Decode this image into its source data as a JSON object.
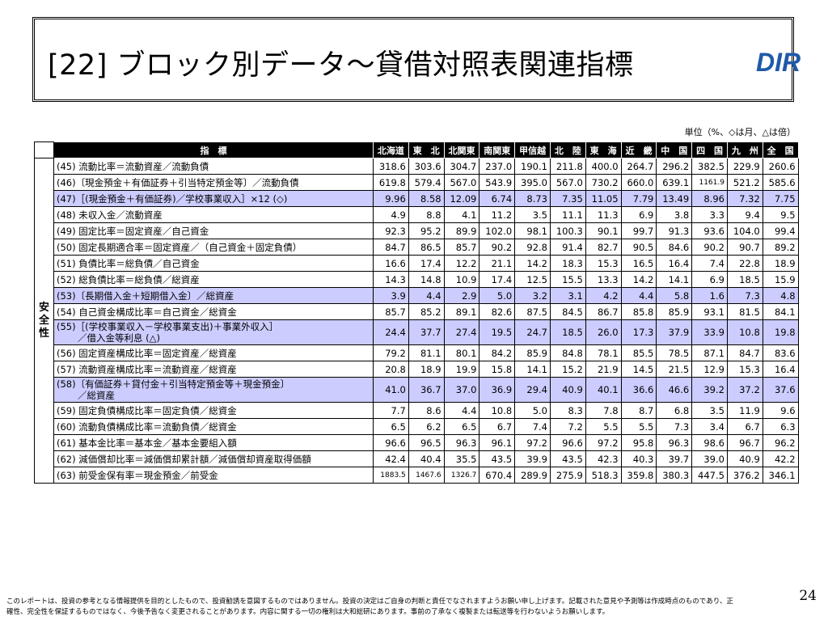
{
  "slide": {
    "title": "[22] ブロック別データ～貸借対照表関連指標",
    "logo_text": "DIR",
    "unit_note": "単位（%、◇は月、△は倍）",
    "page_number": "24",
    "footer": "このレポートは、投資の参考となる情報提供を目的としたもので、投資勧誘を意図するものではありません。投資の決定はご自身の判断と責任でなされますようお願い申し上げます。記載された意見や予測等は作成時点のものであり、正確性、完全性を保証するものではなく、今後予告なく変更されることがあります。内容に関する一切の権利は大和総研にあります。事前の了承なく複製または転送等を行わないようお願いします。"
  },
  "table": {
    "category": "安全性",
    "index_header": "指　標",
    "columns": [
      "北海道",
      "東　北",
      "北関東",
      "南関東",
      "甲信越",
      "北　陸",
      "東　海",
      "近　畿",
      "中　国",
      "四　国",
      "九　州",
      "全　国"
    ],
    "rows": [
      {
        "label": "(45) 流動比率＝流動資産／流動負債",
        "values": [
          "318.6",
          "303.6",
          "304.7",
          "237.0",
          "190.1",
          "211.8",
          "400.0",
          "264.7",
          "296.2",
          "382.5",
          "229.9",
          "260.6"
        ]
      },
      {
        "label": "(46)〔現金預金＋有価証券＋引当特定預金等〕／流動負債",
        "values": [
          "619.8",
          "579.4",
          "567.0",
          "543.9",
          "395.0",
          "567.0",
          "730.2",
          "660.0",
          "639.1",
          "1161.9",
          "521.2",
          "585.6"
        ]
      },
      {
        "label": "(47)［(現金預金＋有価証券)／学校事業収入］×12 (◇)",
        "values": [
          "9.96",
          "8.58",
          "12.09",
          "6.74",
          "8.73",
          "7.35",
          "11.05",
          "7.79",
          "13.49",
          "8.96",
          "7.32",
          "7.75"
        ]
      },
      {
        "label": "(48) 未収入金／流動資産",
        "values": [
          "4.9",
          "8.8",
          "4.1",
          "11.2",
          "3.5",
          "11.1",
          "11.3",
          "6.9",
          "3.8",
          "3.3",
          "9.4",
          "9.5"
        ]
      },
      {
        "label": "(49) 固定比率＝固定資産／自己資金",
        "values": [
          "92.3",
          "95.2",
          "89.9",
          "102.0",
          "98.1",
          "100.3",
          "90.1",
          "99.7",
          "91.3",
          "93.6",
          "104.0",
          "99.4"
        ]
      },
      {
        "label": "(50) 固定長期適合率＝固定資産／（自己資金＋固定負債）",
        "values": [
          "84.7",
          "86.5",
          "85.7",
          "90.2",
          "92.8",
          "91.4",
          "82.7",
          "90.5",
          "84.6",
          "90.2",
          "90.7",
          "89.2"
        ]
      },
      {
        "label": "(51) 負債比率＝総負債／自己資金",
        "values": [
          "16.6",
          "17.4",
          "12.2",
          "21.1",
          "14.2",
          "18.3",
          "15.3",
          "16.5",
          "16.4",
          "7.4",
          "22.8",
          "18.9"
        ]
      },
      {
        "label": "(52) 総負債比率＝総負債／総資産",
        "values": [
          "14.3",
          "14.8",
          "10.9",
          "17.4",
          "12.5",
          "15.5",
          "13.3",
          "14.2",
          "14.1",
          "6.9",
          "18.5",
          "15.9"
        ]
      },
      {
        "label": "(53)〔長期借入金＋短期借入金〕／総資産",
        "values": [
          "3.9",
          "4.4",
          "2.9",
          "5.0",
          "3.2",
          "3.1",
          "4.2",
          "4.4",
          "5.8",
          "1.6",
          "7.3",
          "4.8"
        ]
      },
      {
        "label": "(54) 自己資金構成比率＝自己資金／総資金",
        "values": [
          "85.7",
          "85.2",
          "89.1",
          "82.6",
          "87.5",
          "84.5",
          "86.7",
          "85.8",
          "85.9",
          "93.1",
          "81.5",
          "84.1"
        ]
      },
      {
        "label": "(55)［(学校事業収入－学校事業支出)＋事業外収入］",
        "label2": "／借入金等利息 (△)",
        "values": [
          "24.4",
          "37.7",
          "27.4",
          "19.5",
          "24.7",
          "18.5",
          "26.0",
          "17.3",
          "37.9",
          "33.9",
          "10.8",
          "19.8"
        ]
      },
      {
        "label": "(56) 固定資産構成比率＝固定資産／総資産",
        "values": [
          "79.2",
          "81.1",
          "80.1",
          "84.2",
          "85.9",
          "84.8",
          "78.1",
          "85.5",
          "78.5",
          "87.1",
          "84.7",
          "83.6"
        ]
      },
      {
        "label": "(57) 流動資産構成比率＝流動資産／総資産",
        "values": [
          "20.8",
          "18.9",
          "19.9",
          "15.8",
          "14.1",
          "15.2",
          "21.9",
          "14.5",
          "21.5",
          "12.9",
          "15.3",
          "16.4"
        ]
      },
      {
        "label": "(58)〔有価証券＋貸付金＋引当特定預金等＋現金預金〕",
        "label2": "／総資産",
        "values": [
          "41.0",
          "36.7",
          "37.0",
          "36.9",
          "29.4",
          "40.9",
          "40.1",
          "36.6",
          "46.6",
          "39.2",
          "37.2",
          "37.6"
        ]
      },
      {
        "label": "(59) 固定負債構成比率＝固定負債／総資金",
        "values": [
          "7.7",
          "8.6",
          "4.4",
          "10.8",
          "5.0",
          "8.3",
          "7.8",
          "8.7",
          "6.8",
          "3.5",
          "11.9",
          "9.6"
        ]
      },
      {
        "label": "(60) 流動負債構成比率＝流動負債／総資金",
        "values": [
          "6.5",
          "6.2",
          "6.5",
          "6.7",
          "7.4",
          "7.2",
          "5.5",
          "5.5",
          "7.3",
          "3.4",
          "6.7",
          "6.3"
        ]
      },
      {
        "label": "(61) 基本金比率＝基本金／基本金要組入額",
        "values": [
          "96.6",
          "96.5",
          "96.3",
          "96.1",
          "97.2",
          "96.6",
          "97.2",
          "95.8",
          "96.3",
          "98.6",
          "96.7",
          "96.2"
        ]
      },
      {
        "label": "(62) 減価償却比率＝減価償却累計額／減価償却資産取得価額",
        "values": [
          "42.4",
          "40.4",
          "35.5",
          "43.5",
          "39.9",
          "43.5",
          "42.3",
          "40.3",
          "39.7",
          "39.0",
          "40.9",
          "42.2"
        ]
      },
      {
        "label": "(63) 前受金保有率＝現金預金／前受金",
        "values": [
          "1883.5",
          "1467.6",
          "1326.7",
          "670.4",
          "289.9",
          "275.9",
          "518.3",
          "359.8",
          "380.3",
          "447.5",
          "376.2",
          "346.1"
        ]
      }
    ],
    "highlighted_rows": [
      2,
      8,
      10,
      13
    ]
  }
}
